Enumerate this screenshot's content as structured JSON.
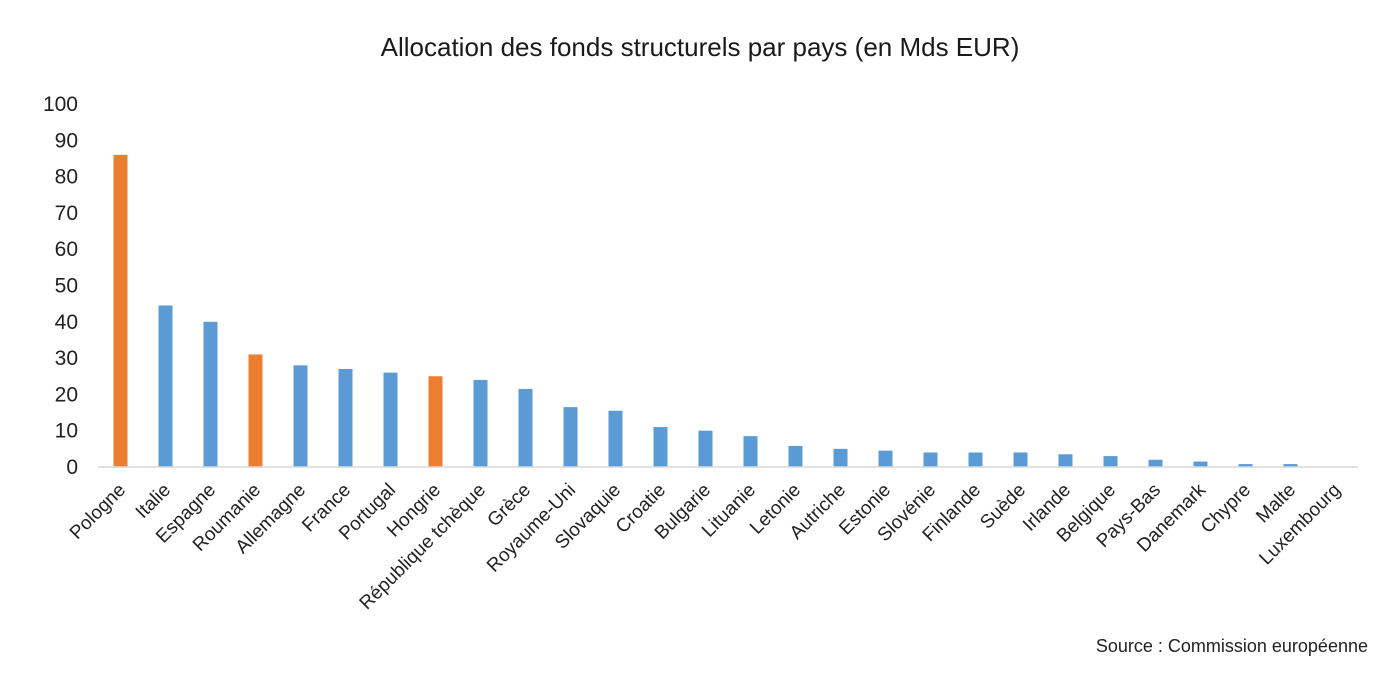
{
  "chart_data": {
    "type": "bar",
    "title": "Allocation des fonds structurels par pays (en Mds EUR)",
    "source": "Source : Commission européenne",
    "xlabel": "",
    "ylabel": "",
    "ylim": [
      0,
      100
    ],
    "yticks": [
      "0",
      "10",
      "20",
      "30",
      "40",
      "50",
      "60",
      "70",
      "80",
      "90",
      "100"
    ],
    "grid": false,
    "colors": {
      "default": "#5b9bd5",
      "highlight": "#ed7d31"
    },
    "categories": [
      "Pologne",
      "Italie",
      "Espagne",
      "Roumanie",
      "Allemagne",
      "France",
      "Portugal",
      "Hongrie",
      "République tchèque",
      "Grèce",
      "Royaume-Uni",
      "Slovaquie",
      "Croatie",
      "Bulgarie",
      "Lituanie",
      "Letonie",
      "Autriche",
      "Estonie",
      "Slovénie",
      "Finlande",
      "Suède",
      "Irlande",
      "Belgique",
      "Pays-Bas",
      "Danemark",
      "Chypre",
      "Malte",
      "Luxembourg"
    ],
    "values": [
      86,
      44.5,
      40,
      31,
      28,
      27,
      26,
      25,
      24,
      21.5,
      16.5,
      15.5,
      11,
      10,
      8.5,
      5.8,
      5,
      4.5,
      4,
      4,
      4,
      3.5,
      3,
      2,
      1.5,
      0.8,
      0.8,
      0.1
    ],
    "highlighted": [
      "Pologne",
      "Roumanie",
      "Hongrie"
    ]
  }
}
